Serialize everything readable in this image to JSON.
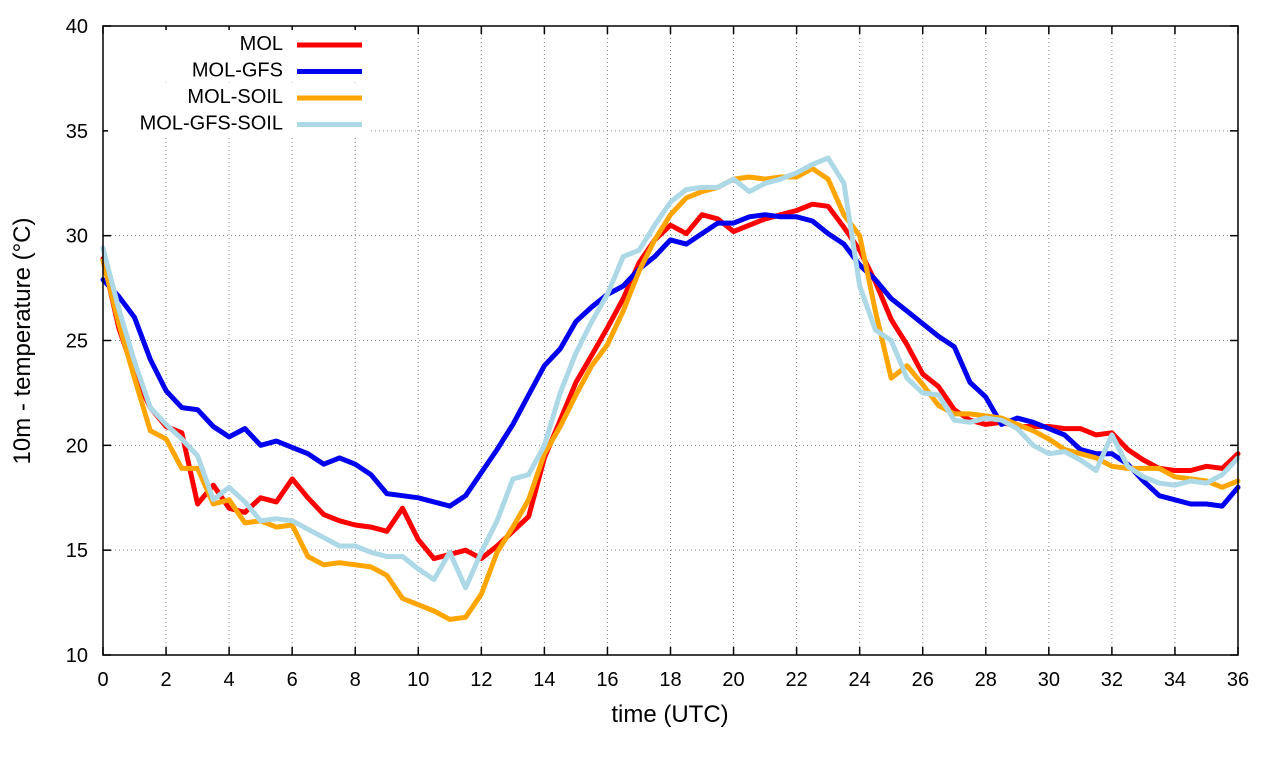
{
  "chart_data": {
    "type": "line",
    "title": "",
    "xlabel": "time (UTC)",
    "ylabel": "10m - temperature (°C)",
    "xlim": [
      0,
      36
    ],
    "ylim": [
      10,
      40
    ],
    "xticks": [
      0,
      2,
      4,
      6,
      8,
      10,
      12,
      14,
      16,
      18,
      20,
      22,
      24,
      26,
      28,
      30,
      32,
      34,
      36
    ],
    "yticks": [
      10,
      15,
      20,
      25,
      30,
      35,
      40
    ],
    "grid": true,
    "legend_position": "top-left",
    "x": [
      0,
      0.5,
      1,
      1.5,
      2,
      2.5,
      3,
      3.5,
      4,
      4.5,
      5,
      5.5,
      6,
      6.5,
      7,
      7.5,
      8,
      8.5,
      9,
      9.5,
      10,
      10.5,
      11,
      11.5,
      12,
      12.5,
      13,
      13.5,
      14,
      14.5,
      15,
      15.5,
      16,
      16.5,
      17,
      17.5,
      18,
      18.5,
      19,
      19.5,
      20,
      20.5,
      21,
      21.5,
      22,
      22.5,
      23,
      23.5,
      24,
      24.5,
      25,
      25.5,
      26,
      26.5,
      27,
      27.5,
      28,
      28.5,
      29,
      29.5,
      30,
      30.5,
      31,
      31.5,
      32,
      32.5,
      33,
      33.5,
      34,
      34.5,
      35,
      35.5,
      36
    ],
    "series": [
      {
        "name": "MOL",
        "color": "#ff0000",
        "values": [
          28.9,
          25.6,
          23.4,
          21.8,
          20.9,
          20.6,
          17.2,
          18.1,
          17.0,
          16.8,
          17.5,
          17.3,
          18.4,
          17.5,
          16.7,
          16.4,
          16.2,
          16.1,
          15.9,
          17.0,
          15.5,
          14.6,
          14.8,
          15.0,
          14.6,
          15.2,
          15.9,
          16.6,
          19.4,
          21.2,
          23.0,
          24.3,
          25.6,
          27.0,
          28.7,
          29.8,
          30.5,
          30.1,
          31.0,
          30.8,
          30.2,
          30.5,
          30.8,
          31.0,
          31.2,
          31.5,
          31.4,
          30.4,
          29.3,
          27.8,
          26.0,
          24.8,
          23.4,
          22.8,
          21.7,
          21.2,
          21.0,
          21.1,
          20.9,
          20.9,
          20.9,
          20.8,
          20.8,
          20.5,
          20.6,
          19.8,
          19.3,
          18.9,
          18.8,
          18.8,
          19.0,
          18.9,
          19.6
        ]
      },
      {
        "name": "MOL-GFS",
        "color": "#0000ee",
        "values": [
          27.9,
          27.1,
          26.1,
          24.1,
          22.6,
          21.8,
          21.7,
          20.9,
          20.4,
          20.8,
          20.0,
          20.2,
          19.9,
          19.6,
          19.1,
          19.4,
          19.1,
          18.6,
          17.7,
          17.6,
          17.5,
          17.3,
          17.1,
          17.6,
          18.7,
          19.8,
          21.0,
          22.4,
          23.8,
          24.6,
          25.9,
          26.6,
          27.2,
          27.6,
          28.4,
          29.0,
          29.8,
          29.6,
          30.1,
          30.6,
          30.6,
          30.9,
          31.0,
          30.9,
          30.9,
          30.7,
          30.1,
          29.6,
          28.6,
          27.9,
          27.0,
          26.4,
          25.8,
          25.2,
          24.7,
          23.0,
          22.3,
          21.0,
          21.3,
          21.1,
          20.8,
          20.5,
          19.8,
          19.6,
          19.6,
          19.1,
          18.3,
          17.6,
          17.4,
          17.2,
          17.2,
          17.1,
          18.0
        ]
      },
      {
        "name": "MOL-SOIL",
        "color": "#ffa500",
        "values": [
          28.8,
          25.8,
          23.2,
          20.7,
          20.3,
          18.9,
          18.9,
          17.2,
          17.4,
          16.3,
          16.4,
          16.1,
          16.2,
          14.7,
          14.3,
          14.4,
          14.3,
          14.2,
          13.8,
          12.7,
          12.4,
          12.1,
          11.7,
          11.8,
          12.9,
          14.9,
          16.1,
          17.4,
          19.6,
          20.9,
          22.4,
          23.8,
          24.8,
          26.4,
          28.3,
          29.8,
          31.0,
          31.8,
          32.1,
          32.3,
          32.7,
          32.8,
          32.7,
          32.8,
          32.8,
          33.2,
          32.7,
          31.0,
          30.0,
          26.4,
          23.2,
          23.8,
          22.9,
          21.9,
          21.5,
          21.5,
          21.4,
          21.3,
          21.0,
          20.7,
          20.3,
          19.8,
          19.6,
          19.4,
          19.0,
          18.9,
          18.9,
          18.9,
          18.5,
          18.4,
          18.3,
          18.0,
          18.3
        ]
      },
      {
        "name": "MOL-GFS-SOIL",
        "color": "#add8e6",
        "values": [
          29.4,
          26.5,
          24.0,
          21.8,
          21.0,
          20.3,
          19.5,
          17.4,
          18.0,
          17.3,
          16.4,
          16.5,
          16.4,
          16.0,
          15.6,
          15.2,
          15.2,
          14.9,
          14.7,
          14.7,
          14.1,
          13.6,
          14.9,
          13.2,
          14.9,
          16.4,
          18.4,
          18.6,
          20.0,
          22.5,
          24.4,
          25.9,
          27.2,
          29.0,
          29.3,
          30.5,
          31.6,
          32.2,
          32.3,
          32.3,
          32.7,
          32.1,
          32.5,
          32.7,
          33.0,
          33.4,
          33.7,
          32.5,
          27.6,
          25.5,
          25.0,
          23.2,
          22.5,
          22.4,
          21.2,
          21.1,
          21.3,
          21.2,
          20.8,
          20.0,
          19.6,
          19.7,
          19.3,
          18.8,
          20.5,
          19.0,
          18.5,
          18.2,
          18.1,
          18.3,
          18.2,
          18.6,
          19.4
        ]
      }
    ]
  }
}
